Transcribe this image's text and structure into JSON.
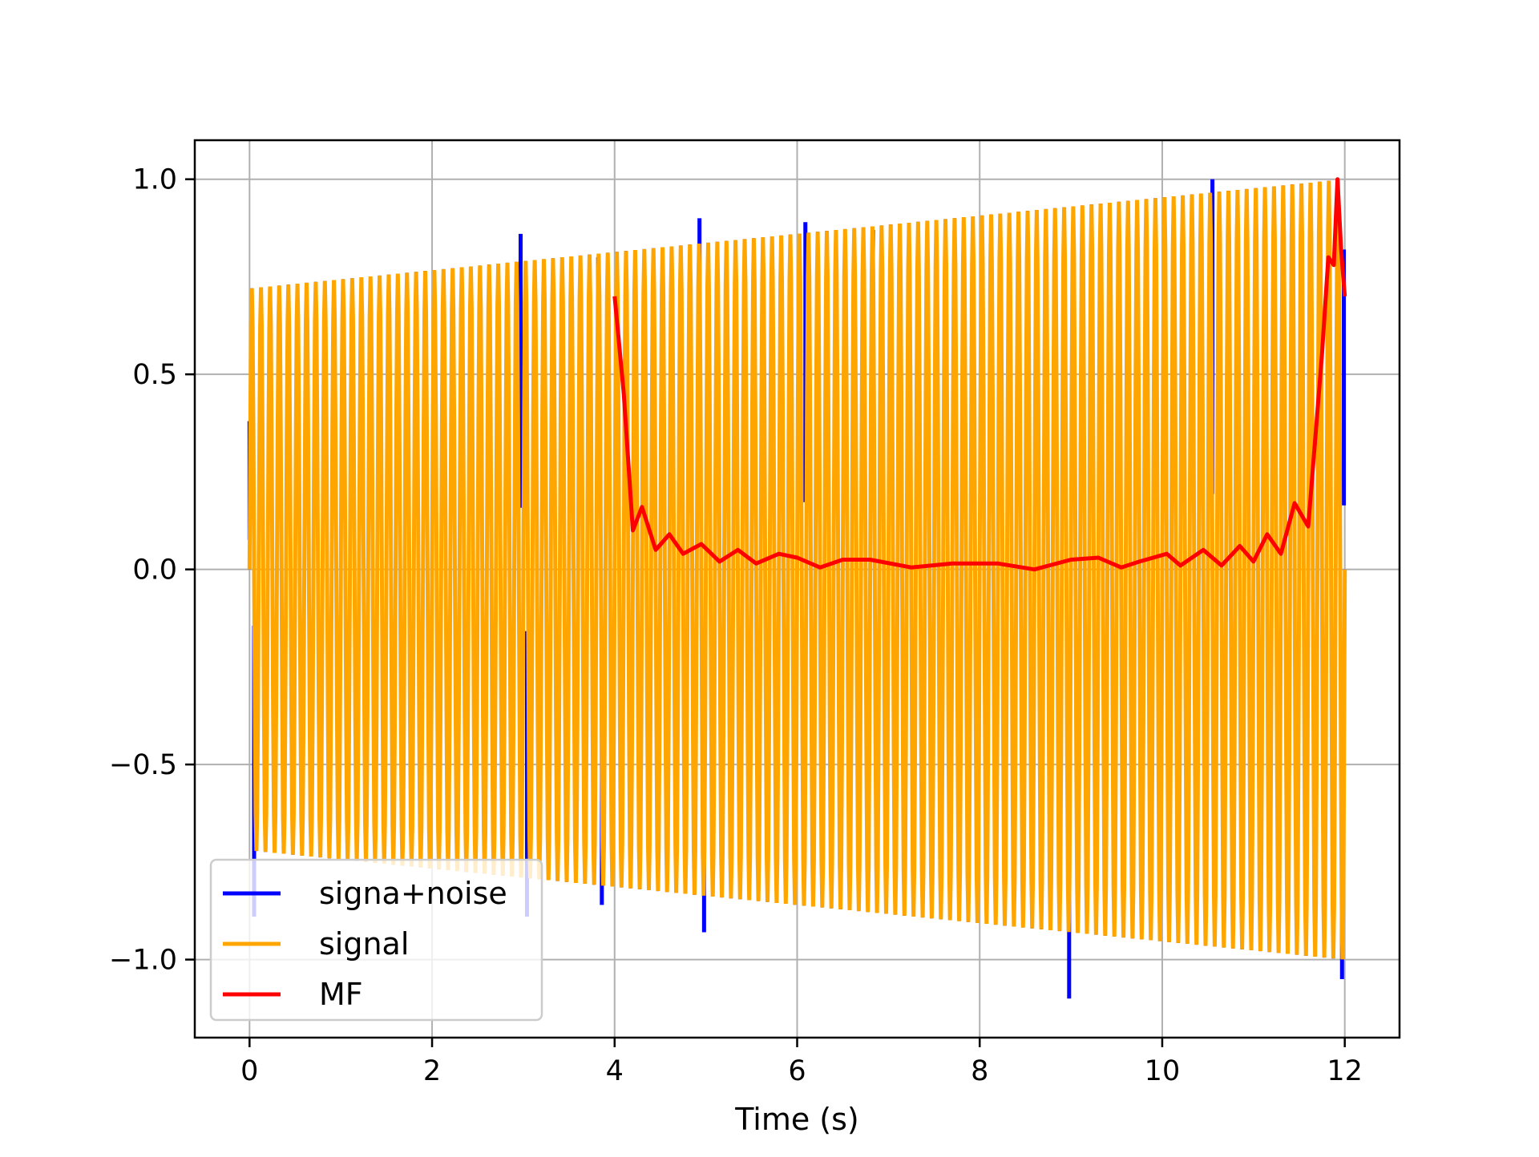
{
  "chart_data": {
    "type": "line",
    "title": "",
    "xlabel": "Time (s)",
    "ylabel": "",
    "xlim": [
      -0.6,
      12.6
    ],
    "ylim": [
      -1.2,
      1.1
    ],
    "grid": true,
    "legend_position": "lower-left",
    "x_ticks": [
      0,
      2,
      4,
      6,
      8,
      10,
      12
    ],
    "x_tick_labels": [
      "0",
      "2",
      "4",
      "6",
      "8",
      "10",
      "12"
    ],
    "y_ticks": [
      1.0,
      0.5,
      0.0,
      -0.5,
      -1.0
    ],
    "y_tick_labels": [
      "1.0",
      "0.5",
      "0.0",
      "−0.5",
      "−1.0"
    ],
    "series": [
      {
        "name": "signa+noise",
        "color": "#0000ff",
        "description_kind": "oscillation",
        "x_range": [
          0,
          12
        ],
        "cycles": 120,
        "envelope": [
          [
            0,
            0.72
          ],
          [
            12,
            1.0
          ]
        ],
        "spikes": [
          [
            0.0,
            0.38
          ],
          [
            0.05,
            -0.89
          ],
          [
            2.97,
            0.86
          ],
          [
            3.04,
            -0.89
          ],
          [
            3.82,
            0.8
          ],
          [
            3.86,
            -0.86
          ],
          [
            4.93,
            0.9
          ],
          [
            4.98,
            -0.93
          ],
          [
            6.09,
            0.89
          ],
          [
            6.83,
            0.87
          ],
          [
            8.98,
            -1.1
          ],
          [
            10.55,
            1.0
          ],
          [
            11.97,
            -1.05
          ],
          [
            11.99,
            0.82
          ]
        ]
      },
      {
        "name": "signal",
        "color": "#ffa500",
        "description_kind": "oscillation",
        "x_range": [
          0,
          12
        ],
        "cycles": 120,
        "envelope": [
          [
            0,
            0.72
          ],
          [
            12,
            1.0
          ]
        ]
      },
      {
        "name": "MF",
        "color": "#ff0000",
        "description_kind": "line",
        "points": [
          [
            4.0,
            0.7
          ],
          [
            4.1,
            0.45
          ],
          [
            4.2,
            0.1
          ],
          [
            4.3,
            0.16
          ],
          [
            4.45,
            0.05
          ],
          [
            4.6,
            0.09
          ],
          [
            4.75,
            0.04
          ],
          [
            4.95,
            0.065
          ],
          [
            5.15,
            0.02
          ],
          [
            5.35,
            0.05
          ],
          [
            5.55,
            0.015
          ],
          [
            5.8,
            0.04
          ],
          [
            6.0,
            0.03
          ],
          [
            6.25,
            0.005
          ],
          [
            6.5,
            0.025
          ],
          [
            6.8,
            0.025
          ],
          [
            7.25,
            0.005
          ],
          [
            7.7,
            0.015
          ],
          [
            8.2,
            0.015
          ],
          [
            8.6,
            0.0
          ],
          [
            9.0,
            0.025
          ],
          [
            9.3,
            0.03
          ],
          [
            9.55,
            0.005
          ],
          [
            9.75,
            0.02
          ],
          [
            10.05,
            0.04
          ],
          [
            10.2,
            0.01
          ],
          [
            10.45,
            0.05
          ],
          [
            10.65,
            0.01
          ],
          [
            10.85,
            0.06
          ],
          [
            11.0,
            0.02
          ],
          [
            11.15,
            0.09
          ],
          [
            11.3,
            0.04
          ],
          [
            11.45,
            0.17
          ],
          [
            11.6,
            0.11
          ],
          [
            11.75,
            0.55
          ],
          [
            11.82,
            0.8
          ],
          [
            11.88,
            0.78
          ],
          [
            11.92,
            1.0
          ],
          [
            11.96,
            0.82
          ],
          [
            12.0,
            0.7
          ]
        ]
      }
    ]
  }
}
